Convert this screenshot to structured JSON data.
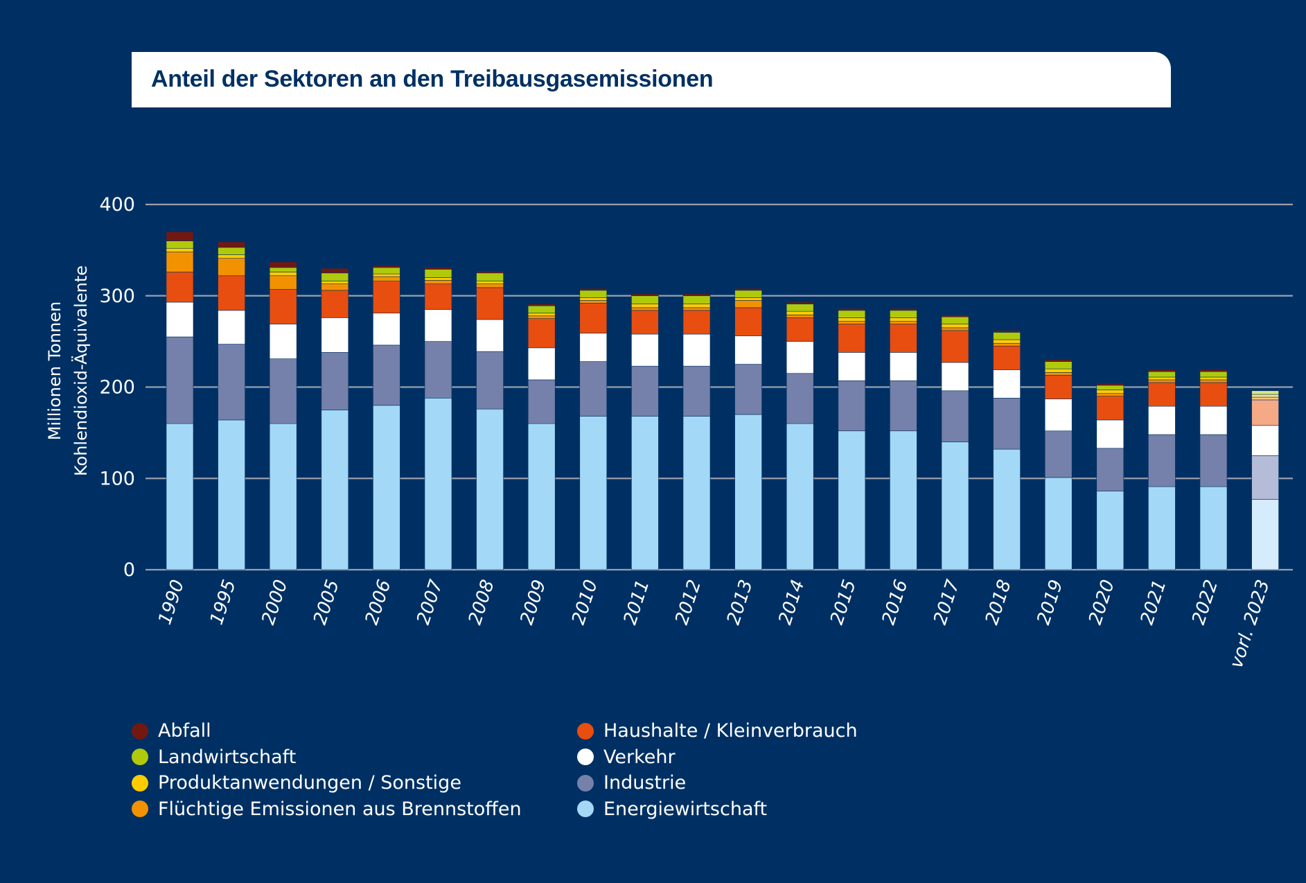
{
  "chart_data": {
    "type": "bar",
    "stacked": true,
    "title": "Anteil der Sektoren an den Treibausgasemissionen",
    "xlabel": "",
    "ylabel": "Millionen Tonnen Kohlendioxid-Äquivalente",
    "ylabel_lines": [
      "Millionen Tonnen",
      "Kohlendioxid-Äquivalente"
    ],
    "ylim": [
      0,
      400
    ],
    "yticks": [
      0,
      100,
      200,
      300,
      400
    ],
    "grid": true,
    "legend_position": "bottom",
    "categories": [
      "1990",
      "1995",
      "2000",
      "2005",
      "2006",
      "2007",
      "2008",
      "2009",
      "2010",
      "2011",
      "2012",
      "2013",
      "2014",
      "2015",
      "2016",
      "2017",
      "2018",
      "2019",
      "2020",
      "2021",
      "2022",
      "vorl. 2023"
    ],
    "preliminary_category": "vorl. 2023",
    "series": [
      {
        "name": "Energiewirtschaft",
        "color": "#a3d9f7",
        "preliminary_color": "#d4ecfb",
        "values": [
          160,
          164,
          160,
          175,
          180,
          188,
          176,
          160,
          168,
          168,
          168,
          170,
          160,
          152,
          152,
          140,
          132,
          101,
          86,
          91,
          91,
          77
        ]
      },
      {
        "name": "Industrie",
        "color": "#7581aa",
        "preliminary_color": "#b5bcd8",
        "values": [
          95,
          83,
          71,
          63,
          66,
          62,
          63,
          48,
          60,
          55,
          55,
          55,
          55,
          55,
          55,
          56,
          56,
          51,
          47,
          57,
          57,
          48
        ]
      },
      {
        "name": "Verkehr",
        "color": "#ffffff",
        "preliminary_color": "#ffffff",
        "values": [
          38,
          37,
          38,
          38,
          35,
          35,
          35,
          35,
          31,
          35,
          35,
          31,
          35,
          31,
          31,
          31,
          31,
          35,
          31,
          31,
          31,
          33
        ]
      },
      {
        "name": "Haushalte / Kleinverbrauch",
        "color": "#e84e0f",
        "preliminary_color": "#f5aa85",
        "values": [
          33,
          38,
          38,
          30,
          35,
          28,
          35,
          32,
          33,
          26,
          26,
          31,
          26,
          31,
          31,
          35,
          26,
          26,
          26,
          26,
          26,
          28
        ]
      },
      {
        "name": "Flüchtige Emissionen aus Brennstoffen",
        "color": "#f39200",
        "preliminary_color": "#f8c880",
        "values": [
          22,
          19,
          15,
          7,
          5,
          4,
          4,
          3,
          3,
          3,
          3,
          8,
          3,
          3,
          3,
          3,
          3,
          3,
          3,
          3,
          3,
          3
        ]
      },
      {
        "name": "Produktanwendungen / Sonstige",
        "color": "#ffcc00",
        "preliminary_color": "#ffe680",
        "values": [
          4,
          4,
          4,
          3,
          3,
          3,
          3,
          3,
          3,
          4,
          4,
          3,
          4,
          4,
          4,
          4,
          4,
          4,
          4,
          3,
          3,
          3
        ]
      },
      {
        "name": "Landwirtschaft",
        "color": "#afca0b",
        "preliminary_color": "#d7e585",
        "values": [
          8,
          8,
          5,
          9,
          7,
          9,
          9,
          8,
          8,
          9,
          9,
          8,
          8,
          8,
          8,
          8,
          8,
          8,
          5,
          6,
          6,
          4
        ]
      },
      {
        "name": "Abfall",
        "color": "#731810",
        "preliminary_color": "#b98b87",
        "values": [
          10,
          6,
          6,
          5,
          2,
          2,
          2,
          2,
          2,
          2,
          2,
          2,
          2,
          2,
          2,
          2,
          2,
          2,
          2,
          2,
          2,
          0
        ]
      }
    ]
  },
  "legend": {
    "col1": [
      "Abfall",
      "Landwirtschaft",
      "Produktanwendungen / Sonstige",
      "Flüchtige Emissionen aus Brennstoffen"
    ],
    "col2": [
      "Haushalte / Kleinverbrauch",
      "Verkehr",
      "Industrie",
      "Energiewirtschaft"
    ]
  },
  "colors": {
    "background": "#003063",
    "gridline": "#9a9fae"
  }
}
